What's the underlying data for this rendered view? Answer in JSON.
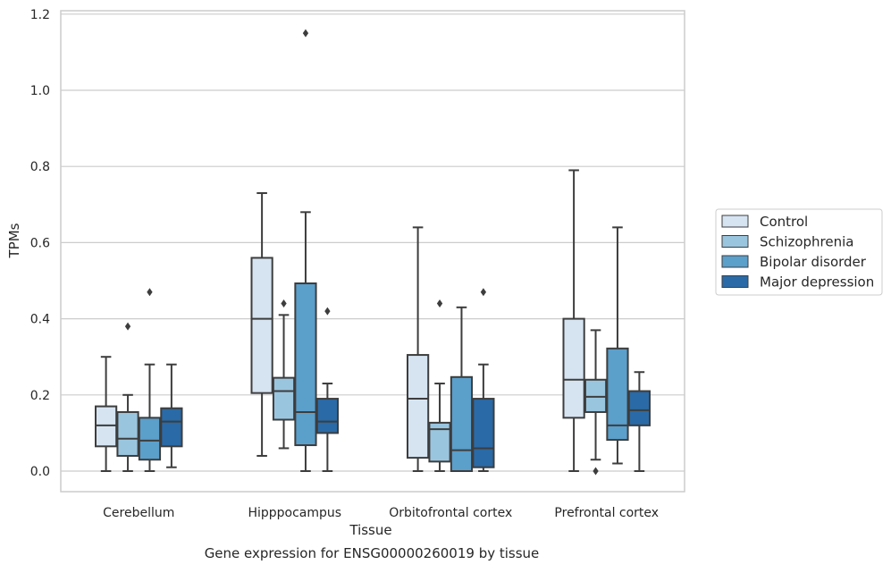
{
  "chart_data": {
    "type": "box",
    "title": "Gene expression for ENSG00000260019 by tissue",
    "xlabel": "Tissue",
    "ylabel": "TPMs",
    "ylim": [
      -0.05,
      1.21
    ],
    "yticks": [
      0.0,
      0.2,
      0.4,
      0.6,
      0.8,
      1.0,
      1.2
    ],
    "ytick_labels": [
      "0.0",
      "0.2",
      "0.4",
      "0.6",
      "0.8",
      "1.0",
      "1.2"
    ],
    "categories": [
      "Cerebellum",
      "Hipppocampus",
      "Orbitofrontal cortex",
      "Prefrontal cortex"
    ],
    "grid": "horizontal",
    "legend_position": "right",
    "series": [
      {
        "name": "Control",
        "color": "#d6e4f2",
        "boxes": [
          {
            "min": 0.0,
            "q1": 0.065,
            "median": 0.12,
            "q3": 0.17,
            "max": 0.3,
            "outliers": []
          },
          {
            "min": 0.04,
            "q1": 0.205,
            "median": 0.4,
            "q3": 0.56,
            "max": 0.73,
            "outliers": []
          },
          {
            "min": 0.0,
            "q1": 0.035,
            "median": 0.19,
            "q3": 0.305,
            "max": 0.64,
            "outliers": []
          },
          {
            "min": 0.0,
            "q1": 0.14,
            "median": 0.24,
            "q3": 0.4,
            "max": 0.79,
            "outliers": []
          }
        ]
      },
      {
        "name": "Schizophrenia",
        "color": "#9ac5df",
        "boxes": [
          {
            "min": 0.0,
            "q1": 0.04,
            "median": 0.085,
            "q3": 0.155,
            "max": 0.2,
            "outliers": [
              0.38
            ]
          },
          {
            "min": 0.06,
            "q1": 0.135,
            "median": 0.21,
            "q3": 0.245,
            "max": 0.41,
            "outliers": [
              0.44
            ]
          },
          {
            "min": 0.0,
            "q1": 0.025,
            "median": 0.11,
            "q3": 0.127,
            "max": 0.23,
            "outliers": [
              0.44
            ]
          },
          {
            "min": 0.03,
            "q1": 0.155,
            "median": 0.195,
            "q3": 0.24,
            "max": 0.37,
            "outliers": [
              0.0
            ]
          }
        ]
      },
      {
        "name": "Bipolar disorder",
        "color": "#5b9fcb",
        "boxes": [
          {
            "min": 0.0,
            "q1": 0.03,
            "median": 0.08,
            "q3": 0.14,
            "max": 0.28,
            "outliers": [
              0.47
            ]
          },
          {
            "min": 0.0,
            "q1": 0.068,
            "median": 0.155,
            "q3": 0.493,
            "max": 0.68,
            "outliers": [
              1.15
            ]
          },
          {
            "min": 0.0,
            "q1": 0.0,
            "median": 0.055,
            "q3": 0.247,
            "max": 0.43,
            "outliers": []
          },
          {
            "min": 0.02,
            "q1": 0.082,
            "median": 0.12,
            "q3": 0.322,
            "max": 0.64,
            "outliers": []
          }
        ]
      },
      {
        "name": "Major depression",
        "color": "#2a6aa6",
        "boxes": [
          {
            "min": 0.01,
            "q1": 0.065,
            "median": 0.13,
            "q3": 0.165,
            "max": 0.28,
            "outliers": []
          },
          {
            "min": 0.0,
            "q1": 0.1,
            "median": 0.13,
            "q3": 0.19,
            "max": 0.23,
            "outliers": [
              0.42
            ]
          },
          {
            "min": 0.0,
            "q1": 0.01,
            "median": 0.06,
            "q3": 0.19,
            "max": 0.28,
            "outliers": [
              0.47
            ]
          },
          {
            "min": 0.0,
            "q1": 0.12,
            "median": 0.16,
            "q3": 0.21,
            "max": 0.26,
            "outliers": []
          }
        ]
      }
    ]
  }
}
